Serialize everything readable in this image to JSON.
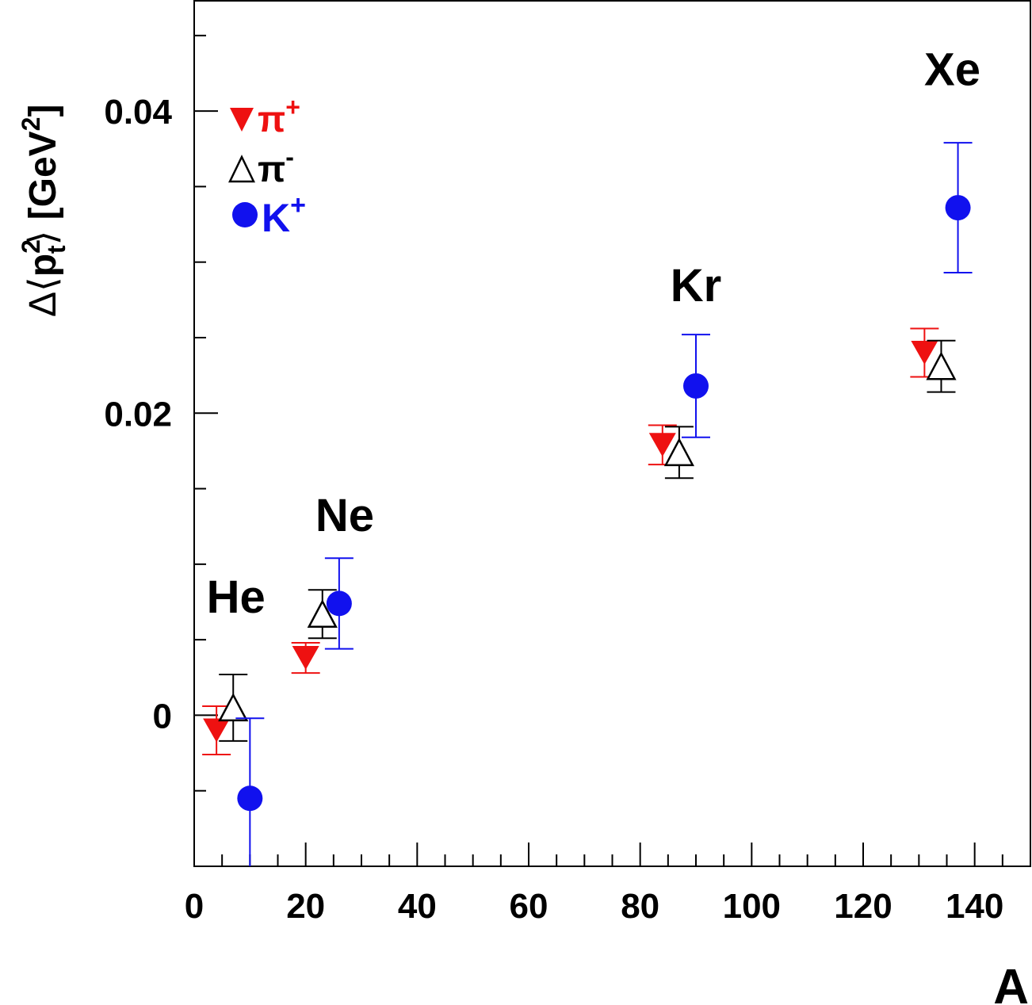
{
  "chart_data": {
    "type": "scatter",
    "xlabel": "A",
    "ylabel": "Δ⟨p²t⟩ [GeV²]",
    "ylabel_parts": {
      "delta": "Δ",
      "open": "⟨",
      "p": "p",
      "sup2": "2",
      "sub_t": "t",
      "close": "⟩",
      "unit_open": " [GeV",
      "unit_sup": "2",
      "unit_close": "]"
    },
    "xlim": [
      0,
      150
    ],
    "ylim": [
      -0.01,
      0.0473
    ],
    "x_ticks": [
      0,
      20,
      40,
      60,
      80,
      100,
      120,
      140
    ],
    "x_tick_labels": [
      "0",
      "20",
      "40",
      "60",
      "80",
      "100",
      "120",
      "140"
    ],
    "y_ticks": [
      0,
      0.02,
      0.04
    ],
    "y_tick_labels": [
      "0",
      "0.02",
      "0.04"
    ],
    "grid": false,
    "legend_position": "top-left",
    "annotations": [
      {
        "text": "He",
        "x": 7.5,
        "y": 0.0068
      },
      {
        "text": "Ne",
        "x": 27,
        "y": 0.0122
      },
      {
        "text": "Kr",
        "x": 90,
        "y": 0.0274
      },
      {
        "text": "Xe",
        "x": 136,
        "y": 0.0417
      }
    ],
    "series": [
      {
        "name": "π+",
        "label_main": "π",
        "label_sup": "+",
        "marker": "filled-down-triangle",
        "color": "#ee1111",
        "points": [
          {
            "x": 4,
            "y": -0.001,
            "err": 0.0016
          },
          {
            "x": 20,
            "y": 0.0038,
            "err": 0.001
          },
          {
            "x": 84,
            "y": 0.0179,
            "err": 0.0013
          },
          {
            "x": 131,
            "y": 0.024,
            "err": 0.0016
          }
        ]
      },
      {
        "name": "π-",
        "label_main": "π",
        "label_sup": "-",
        "marker": "open-up-triangle",
        "color": "#000000",
        "points": [
          {
            "x": 7,
            "y": 0.0005,
            "err": 0.0022
          },
          {
            "x": 23,
            "y": 0.0067,
            "err": 0.0016
          },
          {
            "x": 87,
            "y": 0.0174,
            "err": 0.0017
          },
          {
            "x": 134,
            "y": 0.0231,
            "err": 0.0017
          }
        ]
      },
      {
        "name": "K+",
        "label_main": "K",
        "label_sup": "+",
        "marker": "filled-circle",
        "color": "#1111ee",
        "points": [
          {
            "x": 10,
            "y": -0.0055,
            "err": 0.0053
          },
          {
            "x": 26,
            "y": 0.0074,
            "err": 0.003
          },
          {
            "x": 90,
            "y": 0.0218,
            "err": 0.0034
          },
          {
            "x": 137,
            "y": 0.0336,
            "err": 0.0043
          }
        ]
      }
    ]
  }
}
